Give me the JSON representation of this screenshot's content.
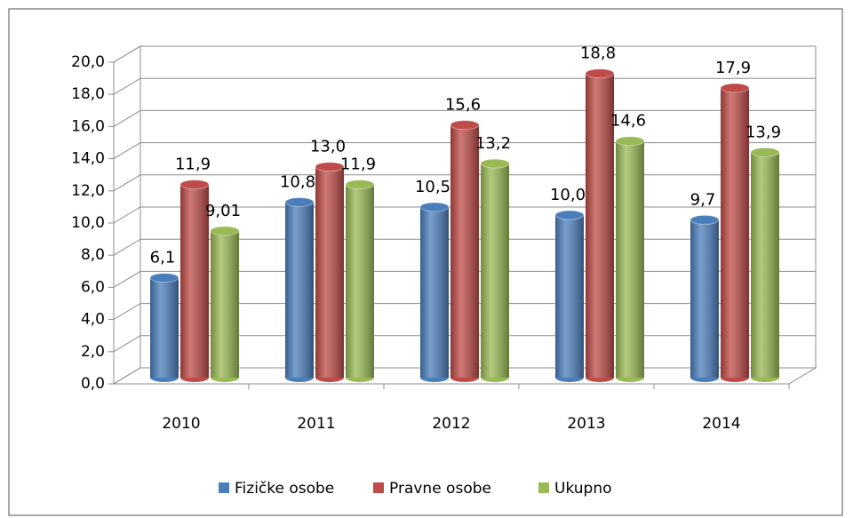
{
  "chart_data": {
    "type": "bar",
    "categories": [
      "2010",
      "2011",
      "2012",
      "2013",
      "2014"
    ],
    "series": [
      {
        "name": "Fizičke osobe",
        "color": "#4a7ebb",
        "values": [
          6.1,
          10.8,
          10.5,
          10.0,
          9.7
        ],
        "value_labels": [
          "6,1",
          "10,8",
          "10,5",
          "10,0",
          "9,7"
        ]
      },
      {
        "name": "Pravne osobe",
        "color": "#be4b48",
        "values": [
          11.9,
          13.0,
          15.6,
          18.8,
          17.9
        ],
        "value_labels": [
          "11,9",
          "13,0",
          "15,6",
          "18,8",
          "17,9"
        ]
      },
      {
        "name": "Ukupno",
        "color": "#98b954",
        "values": [
          9.01,
          11.9,
          13.2,
          14.6,
          13.9
        ],
        "value_labels": [
          "9,01",
          "11,9",
          "13,2",
          "14,6",
          "13,9"
        ]
      }
    ],
    "ylim": [
      0,
      20
    ],
    "yticks": [
      {
        "value": 0,
        "label": "0,0"
      },
      {
        "value": 2,
        "label": "2,0"
      },
      {
        "value": 4,
        "label": "4,0"
      },
      {
        "value": 6,
        "label": "6,0"
      },
      {
        "value": 8,
        "label": "8,0"
      },
      {
        "value": 10,
        "label": "10,0"
      },
      {
        "value": 12,
        "label": "12,0"
      },
      {
        "value": 14,
        "label": "14,0"
      },
      {
        "value": 16,
        "label": "16,0"
      },
      {
        "value": 18,
        "label": "18,0"
      },
      {
        "value": 20,
        "label": "20,0"
      }
    ],
    "grid": true,
    "legend": "bottom"
  }
}
